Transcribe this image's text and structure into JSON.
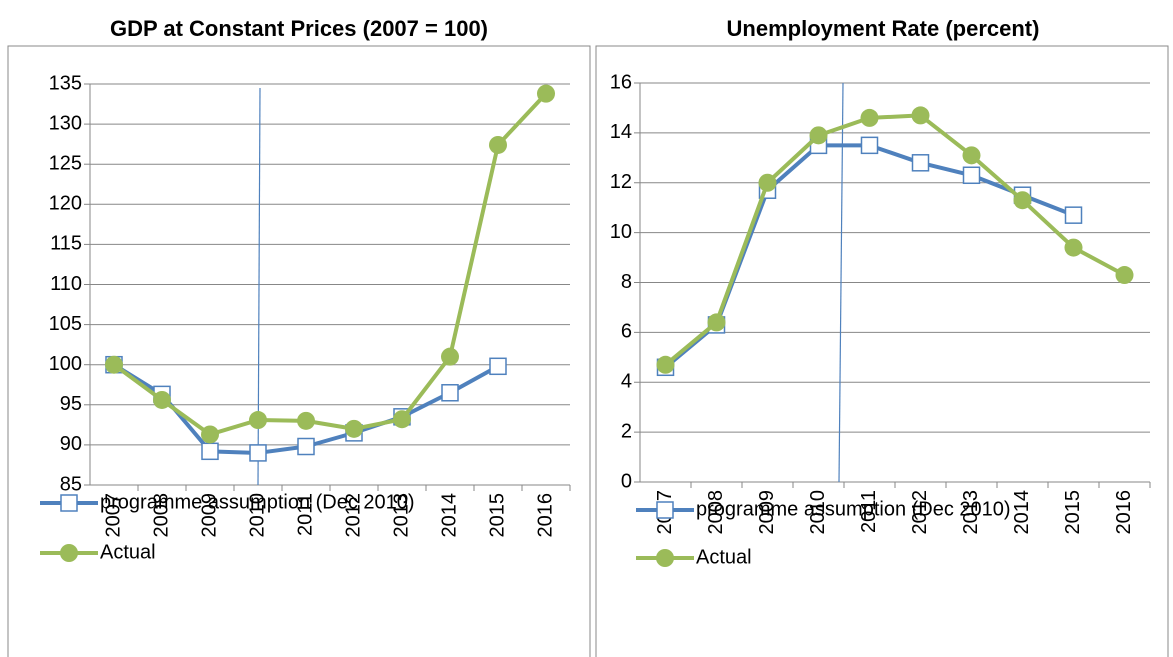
{
  "chart_data": [
    {
      "type": "line",
      "title": "GDP at Constant Prices (2007 = 100)",
      "categories": [
        "2007",
        "2008",
        "2009",
        "2010",
        "2011",
        "2012",
        "2013",
        "2014",
        "2015",
        "2016"
      ],
      "series": [
        {
          "name": "programme assumption (Dec 2010)",
          "color": "#4f81bd",
          "marker": "square",
          "values": [
            100,
            96.3,
            89.2,
            89.0,
            89.8,
            91.5,
            93.5,
            96.5,
            99.8,
            null
          ]
        },
        {
          "name": "Actual",
          "color": "#9bbb59",
          "marker": "circle",
          "values": [
            100,
            95.6,
            91.3,
            93.1,
            93.0,
            92.0,
            93.2,
            101.0,
            127.4,
            133.8
          ]
        }
      ],
      "ylim": [
        85,
        135
      ],
      "yticks": [
        85,
        90,
        95,
        100,
        105,
        110,
        115,
        120,
        125,
        130,
        135
      ],
      "grid": true
    },
    {
      "type": "line",
      "title": "Unemployment Rate (percent)",
      "categories": [
        "2007",
        "2008",
        "2009",
        "2010",
        "2011",
        "2012",
        "2013",
        "2014",
        "2015",
        "2016"
      ],
      "series": [
        {
          "name": "programme assumption (Dec 2010)",
          "color": "#4f81bd",
          "marker": "square",
          "values": [
            4.6,
            6.3,
            11.7,
            13.5,
            13.5,
            12.8,
            12.3,
            11.5,
            10.7,
            null
          ]
        },
        {
          "name": "Actual",
          "color": "#9bbb59",
          "marker": "circle",
          "values": [
            4.7,
            6.4,
            12.0,
            13.9,
            14.6,
            14.7,
            13.1,
            11.3,
            9.4,
            8.3
          ]
        }
      ],
      "ylim": [
        0,
        16
      ],
      "yticks": [
        0,
        2,
        4,
        6,
        8,
        10,
        12,
        14,
        16
      ],
      "grid": true
    }
  ]
}
